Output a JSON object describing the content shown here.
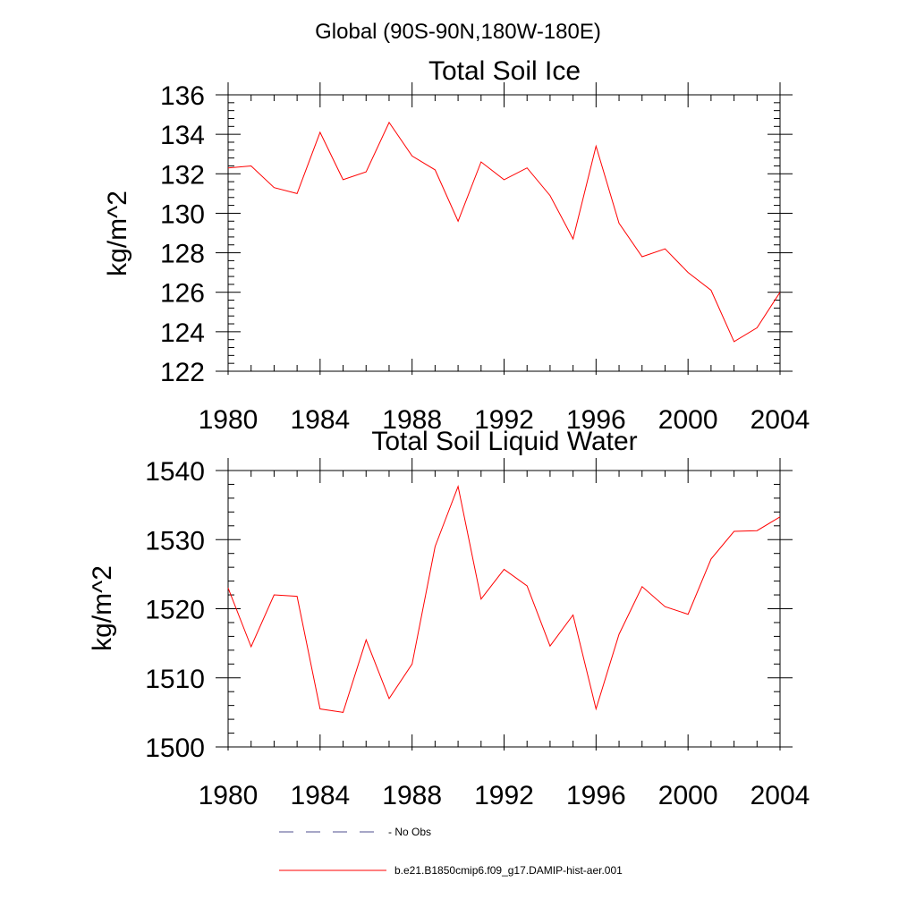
{
  "header": {
    "region": "Global (90S-90N,180W-180E)"
  },
  "chart_data": [
    {
      "type": "line",
      "title": "Total Soil Ice",
      "ylabel": "kg/m^2",
      "xlabel": "",
      "xlim": [
        1980,
        2004
      ],
      "ylim": [
        122,
        136
      ],
      "xticks": [
        "1980",
        "1984",
        "1988",
        "1992",
        "1996",
        "2000",
        "2004"
      ],
      "yticks": [
        "122",
        "124",
        "126",
        "128",
        "130",
        "132",
        "134",
        "136"
      ],
      "x": [
        1980,
        1981,
        1982,
        1983,
        1984,
        1985,
        1986,
        1987,
        1988,
        1989,
        1990,
        1991,
        1992,
        1993,
        1994,
        1995,
        1996,
        1997,
        1998,
        1999,
        2000,
        2001,
        2002,
        2003,
        2004
      ],
      "series": [
        {
          "name": "b.e21.B1850cmip6.f09_g17.DAMIP-hist-aer.001",
          "color": "#ff0000",
          "values": [
            132.3,
            132.4,
            131.3,
            131.0,
            134.1,
            131.7,
            132.1,
            134.6,
            132.9,
            132.2,
            129.6,
            132.6,
            131.7,
            132.3,
            130.9,
            128.7,
            133.4,
            129.5,
            127.8,
            128.2,
            127.0,
            126.1,
            123.5,
            124.2,
            126.0
          ]
        }
      ]
    },
    {
      "type": "line",
      "title": "Total Soil Liquid Water",
      "ylabel": "kg/m^2",
      "xlabel": "",
      "xlim": [
        1980,
        2004
      ],
      "ylim": [
        1500,
        1540
      ],
      "xticks": [
        "1980",
        "1984",
        "1988",
        "1992",
        "1996",
        "2000",
        "2004"
      ],
      "yticks": [
        "1500",
        "1510",
        "1520",
        "1530",
        "1540"
      ],
      "x": [
        1980,
        1981,
        1982,
        1983,
        1984,
        1985,
        1986,
        1987,
        1988,
        1989,
        1990,
        1991,
        1992,
        1993,
        1994,
        1995,
        1996,
        1997,
        1998,
        1999,
        2000,
        2001,
        2002,
        2003,
        2004
      ],
      "series": [
        {
          "name": "b.e21.B1850cmip6.f09_g17.DAMIP-hist-aer.001",
          "color": "#ff0000",
          "values": [
            1523.0,
            1514.5,
            1522.0,
            1521.8,
            1505.5,
            1505.0,
            1515.5,
            1507.0,
            1512.0,
            1529.0,
            1537.7,
            1521.4,
            1525.7,
            1523.3,
            1514.6,
            1519.1,
            1505.5,
            1516.3,
            1523.2,
            1520.3,
            1519.2,
            1527.2,
            1531.2,
            1531.3,
            1533.3
          ]
        }
      ]
    }
  ],
  "legend": [
    {
      "label": "No Obs",
      "color": "#4f4f8f",
      "style": "dashed"
    },
    {
      "label": "b.e21.B1850cmip6.f09_g17.DAMIP-hist-aer.001",
      "color": "#ff0000",
      "style": "solid"
    }
  ]
}
